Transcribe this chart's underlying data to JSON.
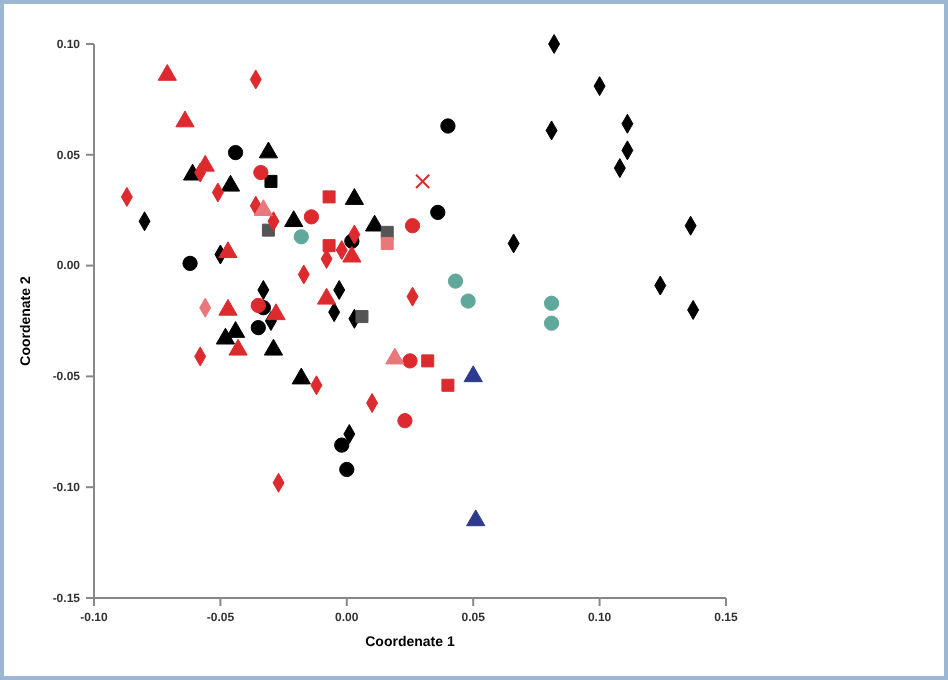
{
  "chart_data": {
    "type": "scatter",
    "xlabel": "Coordenate 1",
    "ylabel": "Coordenate 2",
    "xlim": [
      -0.1,
      0.15
    ],
    "xticks": [
      {
        "value": -0.1,
        "label": "-0.10"
      },
      {
        "value": -0.05,
        "label": "-0.05"
      },
      {
        "value": 0,
        "label": "0.00"
      },
      {
        "value": 0.05,
        "label": "0.05"
      },
      {
        "value": 0.1,
        "label": "0.10"
      },
      {
        "value": 0.15,
        "label": "0.15"
      }
    ],
    "ylim": [
      -0.15,
      0.1
    ],
    "yticks": [
      {
        "value": -0.15,
        "label": "-0.15"
      },
      {
        "value": -0.1,
        "label": "-0.10"
      },
      {
        "value": -0.05,
        "label": "-0.05"
      },
      {
        "value": 0,
        "label": "0.00"
      },
      {
        "value": 0.05,
        "label": "0.05"
      },
      {
        "value": 0.1,
        "label": "0.10"
      }
    ],
    "grid": false,
    "series": [
      {
        "color": "#000000",
        "marker": "diamond",
        "x": [
          0.082,
          0.1,
          0.111,
          0.081,
          0.111,
          0.108,
          0.136,
          0.066,
          0.124,
          0.137,
          -0.08,
          -0.05,
          -0.003,
          -0.005,
          -0.033,
          0.003,
          -0.03,
          0.001
        ],
        "values": [
          0.1,
          0.081,
          0.064,
          0.061,
          0.052,
          0.044,
          0.018,
          0.01,
          -0.009,
          -0.02,
          0.02,
          0.005,
          -0.011,
          -0.021,
          -0.011,
          -0.024,
          -0.025,
          -0.076
        ]
      },
      {
        "color": "#000000",
        "marker": "circle",
        "x": [
          -0.044,
          -0.062,
          0.002,
          -0.033,
          -0.035,
          -0.002,
          0,
          0.04,
          0.036
        ],
        "values": [
          0.051,
          0.001,
          0.011,
          -0.019,
          -0.028,
          -0.081,
          -0.092,
          0.063,
          0.024
        ]
      },
      {
        "color": "#000000",
        "marker": "triangle",
        "x": [
          -0.031,
          -0.061,
          0.003,
          -0.021,
          0.011,
          -0.048,
          -0.044,
          -0.029,
          -0.018
        ],
        "values": [
          0.051,
          0.041,
          0.03,
          0.02,
          0.018,
          -0.033,
          -0.03,
          -0.038,
          -0.051
        ]
      },
      {
        "color": "#000000",
        "marker": "triangle",
        "x": [
          -0.046
        ],
        "values": [
          0.036
        ]
      },
      {
        "color": "#555555",
        "marker": "square",
        "x": [
          -0.031,
          0.016,
          0.006
        ],
        "values": [
          0.016,
          0.015,
          -0.023
        ]
      },
      {
        "color": "#000000",
        "marker": "square",
        "x": [
          -0.03
        ],
        "values": [
          0.038
        ]
      },
      {
        "color": "#dc2a2f",
        "marker": "triangle",
        "x": [
          -0.071,
          -0.064,
          -0.056,
          -0.047,
          0.002,
          -0.008,
          -0.047,
          -0.043,
          -0.028
        ],
        "values": [
          0.086,
          0.065,
          0.045,
          0.006,
          0.004,
          -0.015,
          -0.02,
          -0.038,
          -0.022
        ]
      },
      {
        "color": "#dc2a2f",
        "marker": "diamond",
        "x": [
          -0.036,
          -0.087,
          -0.058,
          -0.051,
          -0.036,
          -0.029,
          -0.002,
          -0.008,
          0.003,
          -0.017,
          0.026,
          -0.058,
          -0.012,
          0.01,
          -0.027
        ],
        "values": [
          0.084,
          0.031,
          0.042,
          0.033,
          0.027,
          0.02,
          0.007,
          0.003,
          0.014,
          -0.004,
          -0.014,
          -0.041,
          -0.054,
          -0.062,
          -0.098
        ]
      },
      {
        "color": "#dc2a2f",
        "marker": "circle",
        "x": [
          -0.034,
          -0.014,
          0.026,
          -0.035,
          0.025,
          0.023
        ],
        "values": [
          0.042,
          0.022,
          0.018,
          -0.018,
          -0.043,
          -0.07
        ]
      },
      {
        "color": "#dc2a2f",
        "marker": "square",
        "x": [
          -0.007,
          -0.007,
          0.032,
          0.04
        ],
        "values": [
          0.031,
          0.009,
          -0.043,
          -0.054
        ]
      },
      {
        "color": "#e8787b",
        "marker": "square",
        "x": [
          0.016
        ],
        "values": [
          0.01
        ]
      },
      {
        "color": "#e8787b",
        "marker": "triangle",
        "x": [
          -0.033,
          0.019
        ],
        "values": [
          0.025,
          -0.042
        ]
      },
      {
        "color": "#e8787b",
        "marker": "diamond",
        "x": [
          -0.056
        ],
        "values": [
          -0.019
        ]
      },
      {
        "color": "#dc2a2f",
        "marker": "cross",
        "x": [
          0.03
        ],
        "values": [
          0.038
        ]
      },
      {
        "color": "#5fa89a",
        "marker": "circle",
        "x": [
          -0.018,
          0.043,
          0.048,
          0.081,
          0.081
        ],
        "values": [
          0.013,
          -0.007,
          -0.016,
          -0.017,
          -0.026
        ]
      },
      {
        "color": "#2e3a8c",
        "marker": "triangle",
        "x": [
          0.05,
          0.051
        ],
        "values": [
          -0.05,
          -0.115
        ]
      }
    ]
  }
}
